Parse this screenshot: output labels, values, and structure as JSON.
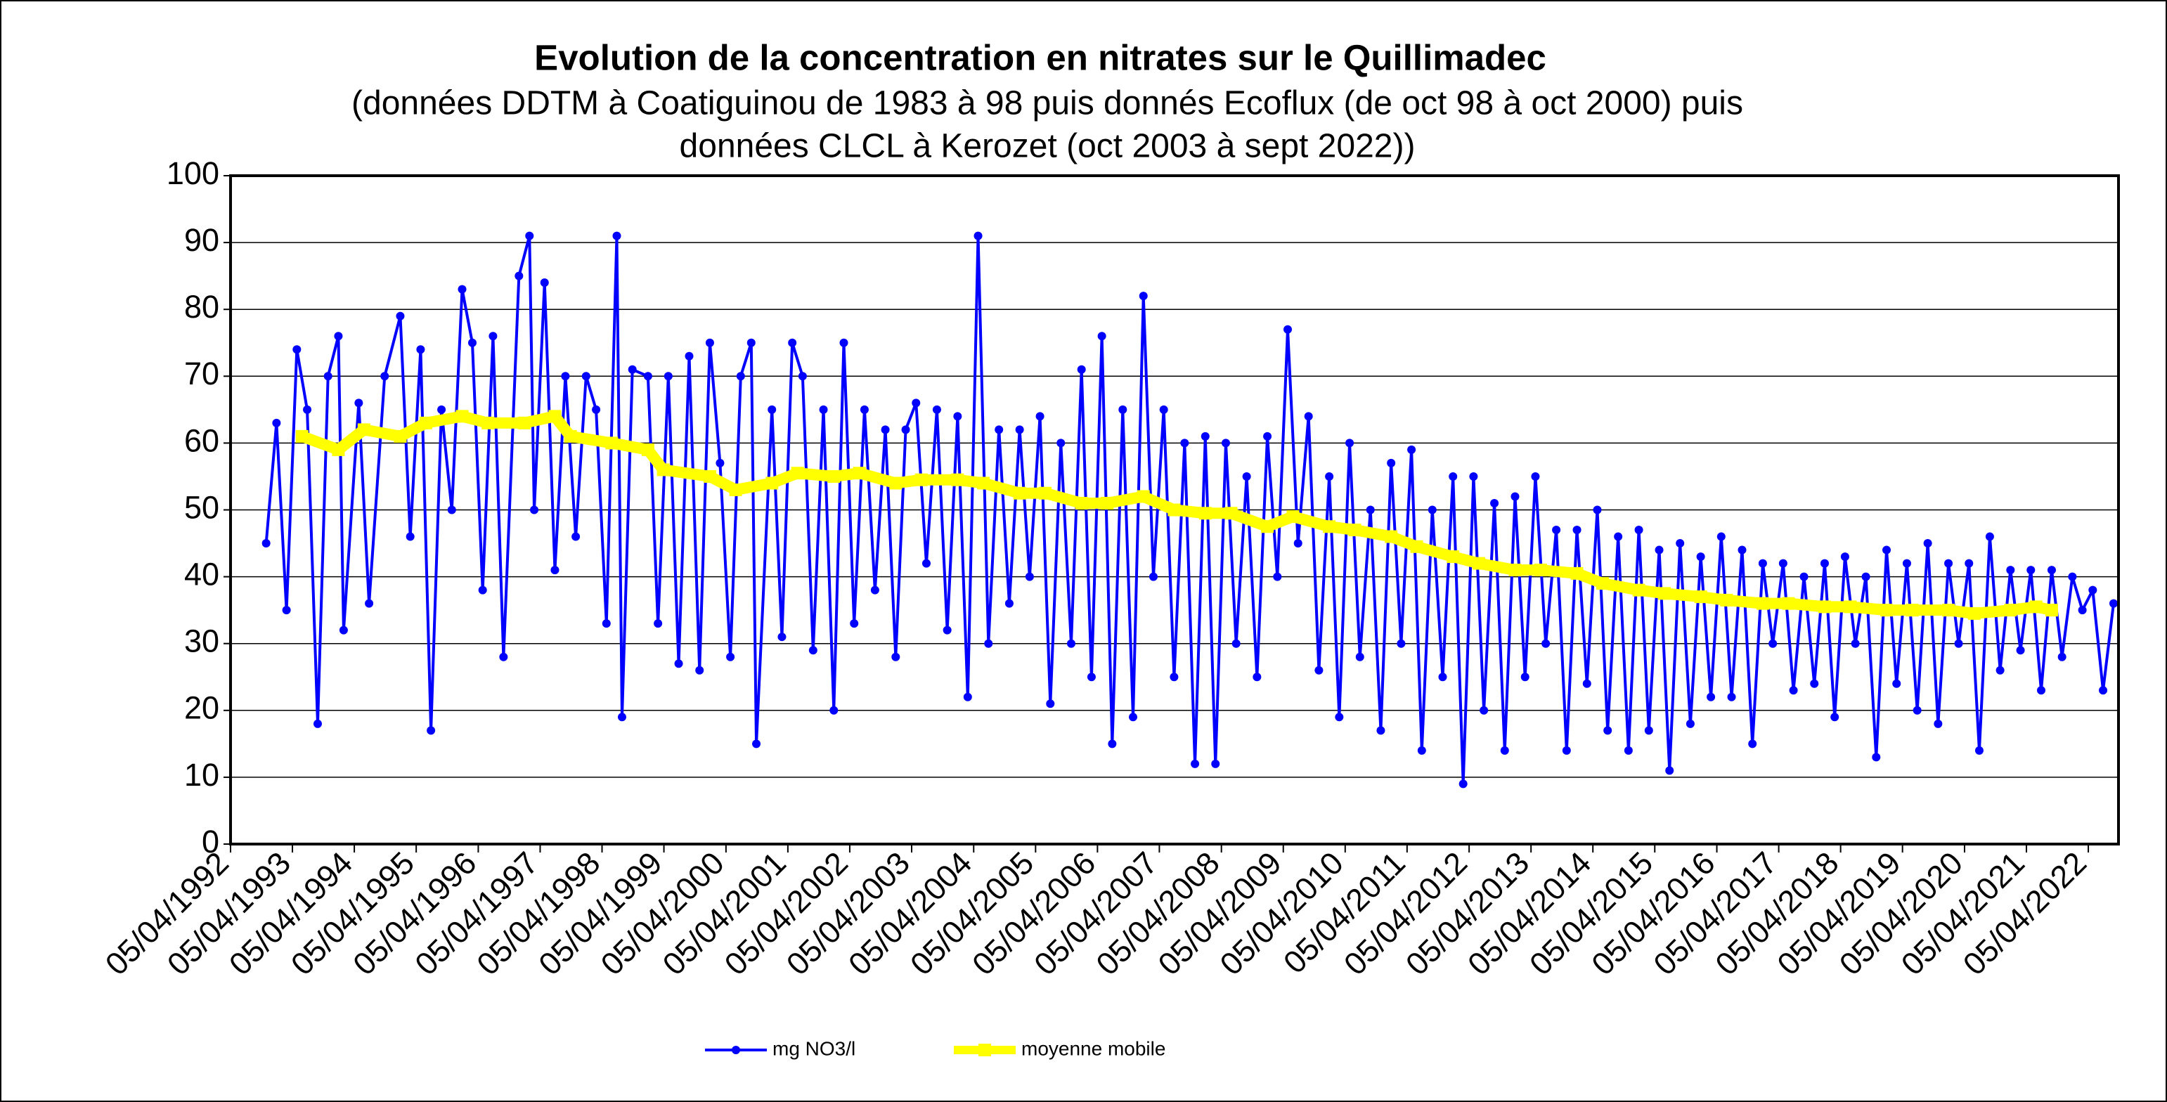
{
  "chart_data": {
    "type": "line",
    "title": "Evolution de la concentration en nitrates sur le Quillimadec",
    "subtitle": [
      "(données DDTM à Coatiguinou de 1983 à 98 puis donnés Ecoflux (de oct 98 à oct 2000) puis",
      "données CLCL à Kerozet (oct 2003 à sept 2022))"
    ],
    "xlim": [
      "1992-04-05",
      "2022-09-30"
    ],
    "xticks": [
      {
        "value": "1992-04-05",
        "label": "05/04/1992"
      },
      {
        "value": "1993-04-05",
        "label": "05/04/1993"
      },
      {
        "value": "1994-04-05",
        "label": "05/04/1994"
      },
      {
        "value": "1995-04-05",
        "label": "05/04/1995"
      },
      {
        "value": "1996-04-05",
        "label": "05/04/1996"
      },
      {
        "value": "1997-04-05",
        "label": "05/04/1997"
      },
      {
        "value": "1998-04-05",
        "label": "05/04/1998"
      },
      {
        "value": "1999-04-05",
        "label": "05/04/1999"
      },
      {
        "value": "2000-04-05",
        "label": "05/04/2000"
      },
      {
        "value": "2001-04-05",
        "label": "05/04/2001"
      },
      {
        "value": "2002-04-05",
        "label": "05/04/2002"
      },
      {
        "value": "2003-04-05",
        "label": "05/04/2003"
      },
      {
        "value": "2004-04-05",
        "label": "05/04/2004"
      },
      {
        "value": "2005-04-05",
        "label": "05/04/2005"
      },
      {
        "value": "2006-04-05",
        "label": "05/04/2006"
      },
      {
        "value": "2007-04-05",
        "label": "05/04/2007"
      },
      {
        "value": "2008-04-05",
        "label": "05/04/2008"
      },
      {
        "value": "2009-04-05",
        "label": "05/04/2009"
      },
      {
        "value": "2010-04-05",
        "label": "05/04/2010"
      },
      {
        "value": "2011-04-05",
        "label": "05/04/2011"
      },
      {
        "value": "2012-04-05",
        "label": "05/04/2012"
      },
      {
        "value": "2013-04-05",
        "label": "05/04/2013"
      },
      {
        "value": "2014-04-05",
        "label": "05/04/2014"
      },
      {
        "value": "2015-04-05",
        "label": "05/04/2015"
      },
      {
        "value": "2016-04-05",
        "label": "05/04/2016"
      },
      {
        "value": "2017-04-05",
        "label": "05/04/2017"
      },
      {
        "value": "2018-04-05",
        "label": "05/04/2018"
      },
      {
        "value": "2019-04-05",
        "label": "05/04/2019"
      },
      {
        "value": "2020-04-05",
        "label": "05/04/2020"
      },
      {
        "value": "2021-04-05",
        "label": "05/04/2021"
      },
      {
        "value": "2022-04-05",
        "label": "05/04/2022"
      }
    ],
    "ylim": [
      0,
      100
    ],
    "yticks": [
      0,
      10,
      20,
      30,
      40,
      50,
      60,
      70,
      80,
      90,
      100
    ],
    "grid": true,
    "series": [
      {
        "name": "mg NO3/l",
        "color": "#0000ff",
        "x": [
          "1992-11",
          "1993-01",
          "1993-03",
          "1993-05",
          "1993-07",
          "1993-09",
          "1993-11",
          "1994-01",
          "1994-02",
          "1994-05",
          "1994-07",
          "1994-10",
          "1995-01",
          "1995-03",
          "1995-05",
          "1995-07",
          "1995-09",
          "1995-11",
          "1996-01",
          "1996-03",
          "1996-05",
          "1996-07",
          "1996-09",
          "1996-12",
          "1997-02",
          "1997-03",
          "1997-05",
          "1997-07",
          "1997-09",
          "1997-11",
          "1998-01",
          "1998-03",
          "1998-05",
          "1998-07",
          "1998-08",
          "1998-10",
          "1999-01",
          "1999-03",
          "1999-05",
          "1999-07",
          "1999-09",
          "1999-11",
          "2000-01",
          "2000-03",
          "2000-05",
          "2000-07",
          "2000-09",
          "2000-10",
          "2001-01",
          "2001-03",
          "2001-05",
          "2001-07",
          "2001-09",
          "2001-11",
          "2002-01",
          "2002-03",
          "2002-05",
          "2002-07",
          "2002-09",
          "2002-11",
          "2003-01",
          "2003-03",
          "2003-05",
          "2003-07",
          "2003-09",
          "2003-11",
          "2004-01",
          "2004-03",
          "2004-05",
          "2004-07",
          "2004-09",
          "2004-11",
          "2005-01",
          "2005-03",
          "2005-05",
          "2005-07",
          "2005-09",
          "2005-11",
          "2006-01",
          "2006-03",
          "2006-05",
          "2006-07",
          "2006-09",
          "2006-11",
          "2007-01",
          "2007-03",
          "2007-05",
          "2007-07",
          "2007-09",
          "2007-11",
          "2008-01",
          "2008-03",
          "2008-05",
          "2008-07",
          "2008-09",
          "2008-11",
          "2009-01",
          "2009-03",
          "2009-05",
          "2009-07",
          "2009-09",
          "2009-11",
          "2010-01",
          "2010-03",
          "2010-05",
          "2010-07",
          "2010-09",
          "2010-11",
          "2011-01",
          "2011-03",
          "2011-05",
          "2011-07",
          "2011-09",
          "2011-11",
          "2012-01",
          "2012-03",
          "2012-05",
          "2012-07",
          "2012-09",
          "2012-11",
          "2013-01",
          "2013-03",
          "2013-05",
          "2013-07",
          "2013-09",
          "2013-11",
          "2014-01",
          "2014-03",
          "2014-05",
          "2014-07",
          "2014-09",
          "2014-11",
          "2015-01",
          "2015-03",
          "2015-05",
          "2015-07",
          "2015-09",
          "2015-11",
          "2016-01",
          "2016-03",
          "2016-05",
          "2016-07",
          "2016-09",
          "2016-11",
          "2017-01",
          "2017-03",
          "2017-05",
          "2017-07",
          "2017-09",
          "2017-11",
          "2018-01",
          "2018-03",
          "2018-05",
          "2018-07",
          "2018-09",
          "2018-11",
          "2019-01",
          "2019-03",
          "2019-05",
          "2019-07",
          "2019-09",
          "2019-11",
          "2020-01",
          "2020-03",
          "2020-05",
          "2020-07",
          "2020-09",
          "2020-11",
          "2021-01",
          "2021-03",
          "2021-05",
          "2021-07",
          "2021-09",
          "2021-11",
          "2022-01",
          "2022-03",
          "2022-05",
          "2022-07",
          "2022-09"
        ],
        "values": [
          45,
          63,
          35,
          74,
          65,
          18,
          70,
          76,
          32,
          66,
          36,
          70,
          79,
          46,
          74,
          17,
          65,
          50,
          83,
          75,
          38,
          76,
          28,
          85,
          91,
          50,
          84,
          41,
          70,
          46,
          70,
          65,
          33,
          91,
          19,
          71,
          70,
          33,
          70,
          27,
          73,
          26,
          75,
          57,
          28,
          70,
          75,
          15,
          65,
          31,
          75,
          70,
          29,
          65,
          20,
          75,
          33,
          65,
          38,
          62,
          28,
          62,
          66,
          42,
          65,
          32,
          64,
          22,
          91,
          30,
          62,
          36,
          62,
          40,
          64,
          21,
          60,
          30,
          71,
          25,
          76,
          15,
          65,
          19,
          82,
          40,
          65,
          25,
          60,
          12,
          61,
          12,
          60,
          30,
          55,
          25,
          61,
          40,
          77,
          45,
          64,
          26,
          55,
          19,
          60,
          28,
          50,
          17,
          57,
          30,
          59,
          14,
          50,
          25,
          55,
          9,
          55,
          20,
          51,
          14,
          52,
          25,
          55,
          30,
          47,
          14,
          47,
          24,
          50,
          17,
          46,
          14,
          47,
          17,
          44,
          11,
          45,
          18,
          43,
          22,
          46,
          22,
          44,
          15,
          42,
          30,
          42,
          23,
          40,
          24,
          42,
          19,
          43,
          30,
          40,
          13,
          44,
          24,
          42,
          20,
          45,
          18,
          42,
          30,
          42,
          14,
          46,
          26,
          41,
          29,
          41,
          23,
          41,
          28,
          40,
          35,
          38,
          23,
          36
        ]
      },
      {
        "name": "moyenne mobile",
        "color": "#ffff00",
        "x": [
          "1993-06",
          "1994-01",
          "1994-06",
          "1995-01",
          "1995-06",
          "1996-01",
          "1996-06",
          "1997-01",
          "1997-07",
          "1997-10",
          "1998-06",
          "1999-01",
          "1999-04",
          "2000-01",
          "2000-06",
          "2001-01",
          "2001-06",
          "2002-01",
          "2002-06",
          "2003-01",
          "2003-06",
          "2004-01",
          "2004-06",
          "2005-01",
          "2005-06",
          "2006-01",
          "2006-06",
          "2007-01",
          "2007-07",
          "2008-01",
          "2008-06",
          "2009-01",
          "2009-06",
          "2010-01",
          "2010-06",
          "2011-01",
          "2011-06",
          "2012-01",
          "2012-06",
          "2013-01",
          "2013-06",
          "2014-01",
          "2014-06",
          "2015-01",
          "2015-06",
          "2016-01",
          "2016-06",
          "2017-01",
          "2017-06",
          "2018-01",
          "2018-06",
          "2019-01",
          "2019-06",
          "2020-01",
          "2020-06",
          "2021-01",
          "2021-06",
          "2021-09"
        ],
        "values": [
          61,
          59,
          62,
          61,
          63,
          64,
          63,
          63,
          64,
          61,
          60,
          59,
          56,
          55,
          53,
          54,
          55.5,
          55,
          55.5,
          54,
          54.5,
          54.5,
          54,
          52.5,
          52.5,
          51,
          51,
          52,
          50,
          49.5,
          49.5,
          47.5,
          49,
          47.5,
          47,
          46,
          44.5,
          43,
          42,
          41,
          41,
          40.5,
          39,
          38,
          37.5,
          37,
          36.5,
          36,
          36,
          35.5,
          35.5,
          35,
          35,
          35,
          34.5,
          35,
          35.5,
          35
        ]
      }
    ]
  }
}
